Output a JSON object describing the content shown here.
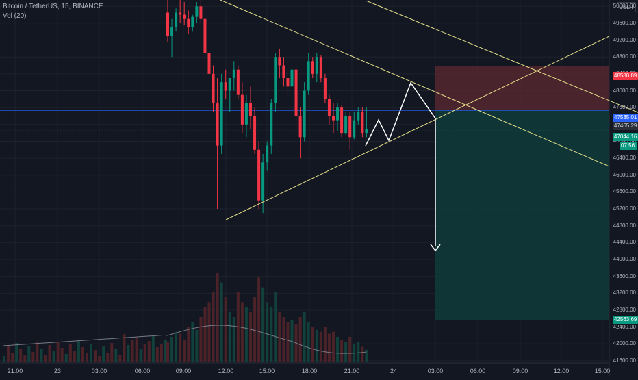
{
  "header": {
    "symbol_line": "Bitcoin / TetherUS, 15, BINANCE",
    "volume_label": "Vol (20)"
  },
  "currency_badge": "USDT",
  "price_axis": [
    "50000.00",
    "49600.00",
    "49200.00",
    "48800.00",
    "48400.00",
    "48000.00",
    "47600.00",
    "47200.00",
    "46800.00",
    "46400.00",
    "46000.00",
    "45600.00",
    "45200.00",
    "44800.00",
    "44400.00",
    "44000.00",
    "43600.00",
    "43200.00",
    "42800.00",
    "42400.00",
    "42000.00",
    "41600.00"
  ],
  "time_axis": [
    "21:00",
    "23",
    "03:00",
    "06:00",
    "09:00",
    "12:00",
    "15:00",
    "18:00",
    "21:00",
    "24",
    "03:00",
    "06:00",
    "09:00",
    "12:00",
    "15:00"
  ],
  "price_tags": {
    "stop_loss": "48580.89",
    "entry": "47535.01",
    "last_close": "47465.29",
    "current_price": "47044.16",
    "countdown": "07:56",
    "target": "42563.69"
  },
  "colors": {
    "background": "#131722",
    "up_candle": "#089981",
    "down_candle": "#f23645",
    "trendline": "#e5e08a",
    "entry_line": "#2962ff",
    "stop_zone": "#5e2a30",
    "target_zone": "#103b3a",
    "projection": "#ffffff"
  },
  "chart_data": {
    "type": "candlestick",
    "symbol": "Bitcoin / TetherUS",
    "interval": "15",
    "exchange": "BINANCE",
    "y_range": [
      41550,
      50150
    ],
    "candles": [
      {
        "o": 49850,
        "h": 50150,
        "l": 49150,
        "c": 49300
      },
      {
        "o": 49300,
        "h": 49700,
        "l": 48800,
        "c": 49500
      },
      {
        "o": 49500,
        "h": 49950,
        "l": 49400,
        "c": 49850
      },
      {
        "o": 49850,
        "h": 50150,
        "l": 49600,
        "c": 49800
      },
      {
        "o": 49800,
        "h": 50100,
        "l": 49550,
        "c": 49700
      },
      {
        "o": 49700,
        "h": 49900,
        "l": 49350,
        "c": 49500
      },
      {
        "o": 49500,
        "h": 49800,
        "l": 49400,
        "c": 49750
      },
      {
        "o": 49750,
        "h": 50100,
        "l": 49600,
        "c": 50000
      },
      {
        "o": 50000,
        "h": 50150,
        "l": 49600,
        "c": 49700
      },
      {
        "o": 49700,
        "h": 49800,
        "l": 48700,
        "c": 48900
      },
      {
        "o": 48900,
        "h": 49000,
        "l": 48200,
        "c": 48400
      },
      {
        "o": 48400,
        "h": 48600,
        "l": 47500,
        "c": 47700
      },
      {
        "o": 47700,
        "h": 48300,
        "l": 45200,
        "c": 46700
      },
      {
        "o": 46700,
        "h": 48400,
        "l": 46500,
        "c": 48200
      },
      {
        "o": 48200,
        "h": 48500,
        "l": 47800,
        "c": 48000
      },
      {
        "o": 48000,
        "h": 48300,
        "l": 47500,
        "c": 48300
      },
      {
        "o": 48300,
        "h": 48700,
        "l": 48000,
        "c": 48500
      },
      {
        "o": 48500,
        "h": 48600,
        "l": 47800,
        "c": 47900
      },
      {
        "o": 47900,
        "h": 48200,
        "l": 47000,
        "c": 47200
      },
      {
        "o": 47200,
        "h": 47900,
        "l": 46900,
        "c": 47700
      },
      {
        "o": 47700,
        "h": 48100,
        "l": 47100,
        "c": 47400
      },
      {
        "o": 47400,
        "h": 47600,
        "l": 46500,
        "c": 46600
      },
      {
        "o": 46600,
        "h": 46800,
        "l": 45200,
        "c": 45400
      },
      {
        "o": 45400,
        "h": 46500,
        "l": 45100,
        "c": 46300
      },
      {
        "o": 46300,
        "h": 46800,
        "l": 46100,
        "c": 46700
      },
      {
        "o": 46700,
        "h": 47800,
        "l": 46500,
        "c": 47700
      },
      {
        "o": 47700,
        "h": 48900,
        "l": 47500,
        "c": 48800
      },
      {
        "o": 48800,
        "h": 49000,
        "l": 48300,
        "c": 48600
      },
      {
        "o": 48600,
        "h": 48800,
        "l": 48100,
        "c": 48300
      },
      {
        "o": 48300,
        "h": 48500,
        "l": 47900,
        "c": 48100
      },
      {
        "o": 48100,
        "h": 48700,
        "l": 48000,
        "c": 48500
      },
      {
        "o": 48500,
        "h": 48600,
        "l": 47100,
        "c": 47400
      },
      {
        "o": 47400,
        "h": 47600,
        "l": 46400,
        "c": 46900
      },
      {
        "o": 46900,
        "h": 48200,
        "l": 46800,
        "c": 48000
      },
      {
        "o": 48000,
        "h": 48900,
        "l": 47900,
        "c": 48700
      },
      {
        "o": 48700,
        "h": 48800,
        "l": 48300,
        "c": 48400
      },
      {
        "o": 48400,
        "h": 48900,
        "l": 48200,
        "c": 48800
      },
      {
        "o": 48800,
        "h": 48850,
        "l": 48200,
        "c": 48300
      },
      {
        "o": 48300,
        "h": 48400,
        "l": 47700,
        "c": 47800
      },
      {
        "o": 47800,
        "h": 47900,
        "l": 47200,
        "c": 47400
      },
      {
        "o": 47400,
        "h": 47700,
        "l": 47000,
        "c": 47300
      },
      {
        "o": 47300,
        "h": 47700,
        "l": 47050,
        "c": 47600
      },
      {
        "o": 47600,
        "h": 47650,
        "l": 46900,
        "c": 47000
      },
      {
        "o": 47000,
        "h": 47500,
        "l": 46950,
        "c": 47400
      },
      {
        "o": 47400,
        "h": 47500,
        "l": 46600,
        "c": 46900
      },
      {
        "o": 46900,
        "h": 47500,
        "l": 46850,
        "c": 47300
      },
      {
        "o": 47300,
        "h": 47600,
        "l": 47200,
        "c": 47500
      },
      {
        "o": 47500,
        "h": 47600,
        "l": 46900,
        "c": 47000
      },
      {
        "o": 47000,
        "h": 47600,
        "l": 46900,
        "c": 47100
      }
    ],
    "volume": [
      20,
      25,
      30,
      28,
      22,
      35,
      40,
      32,
      45,
      55,
      60,
      70,
      90,
      80,
      65,
      50,
      45,
      70,
      60,
      55,
      50,
      65,
      85,
      75,
      60,
      55,
      70,
      50,
      45,
      40,
      42,
      38,
      45,
      50,
      40,
      35,
      32,
      30,
      35,
      28,
      30,
      25,
      22,
      20,
      25,
      18,
      20,
      15,
      12
    ],
    "volume_ma_label": "Vol (20)",
    "annotations": {
      "trendline_upper": {
        "from": [
          48,
          50130
        ],
        "to": [
          140,
          46420
        ]
      },
      "trendline_lower": {
        "from": [
          12,
          45150
        ],
        "to": [
          140,
          49530
        ]
      },
      "entry_price": 47535.01,
      "stop_loss": 48580.89,
      "target": 42563.69,
      "projection_path": [
        [
          47,
          47050
        ],
        [
          50,
          47500
        ],
        [
          53,
          47000
        ],
        [
          60,
          48350
        ],
        [
          66,
          47500
        ],
        [
          66,
          44200
        ]
      ]
    }
  }
}
